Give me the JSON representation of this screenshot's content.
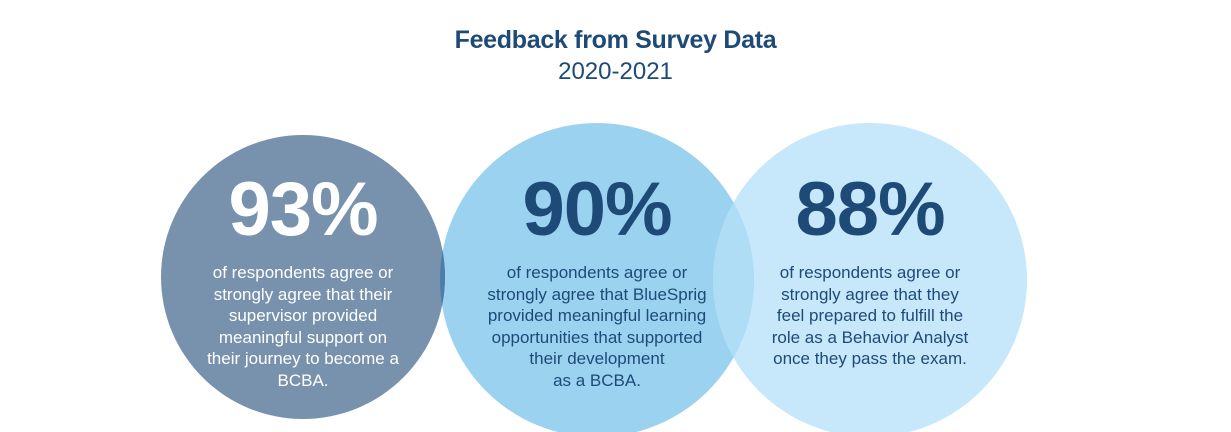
{
  "header": {
    "title": "Feedback from Survey Data",
    "subtitle": "2020-2021"
  },
  "colors": {
    "circle_1": "#7892ad",
    "circle_2": "#9bd2f0",
    "circle_3": "#c7e8fa",
    "overlap_1_2": "#4b7fa7",
    "overlap_2_3": "#b0ddf6",
    "dark_text": "#1e4a78",
    "light_text": "#ffffff"
  },
  "stats": [
    {
      "value": "93%",
      "lines": [
        "of respondents agree or",
        "strongly agree that their",
        "supervisor provided",
        "meaningful support on",
        "their journey to become a",
        "BCBA."
      ]
    },
    {
      "value": "90%",
      "lines": [
        "of respondents agree or",
        "strongly agree that BlueSprig",
        "provided meaningful learning",
        "opportunities that supported",
        "their development",
        "as a BCBA."
      ]
    },
    {
      "value": "88%",
      "lines": [
        "of respondents agree or",
        "strongly agree that they",
        "feel prepared to fulfill the",
        "role as a Behavior Analyst",
        "once they pass the exam."
      ]
    }
  ]
}
